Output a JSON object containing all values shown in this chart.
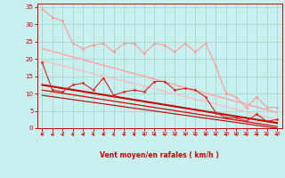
{
  "bg_color": "#c8f0ee",
  "grid_color": "#a8d8d0",
  "xlabel": "Vent moyen/en rafales ( km/h )",
  "xlabel_color": "#cc0000",
  "tick_color": "#cc0000",
  "xlim": [
    -0.5,
    23.5
  ],
  "ylim": [
    0,
    36
  ],
  "yticks": [
    0,
    5,
    10,
    15,
    20,
    25,
    30,
    35
  ],
  "xticks": [
    0,
    1,
    2,
    3,
    4,
    5,
    6,
    7,
    8,
    9,
    10,
    11,
    12,
    13,
    14,
    15,
    16,
    17,
    18,
    19,
    20,
    21,
    22,
    23
  ],
  "line_light1": {
    "y": [
      34.5,
      32.0,
      31.0,
      24.5,
      23.0,
      24.0,
      24.5,
      22.0,
      24.5,
      24.5,
      21.5,
      24.5,
      24.0,
      22.0,
      24.5,
      22.0,
      24.5,
      18.0,
      10.0,
      9.0,
      6.0,
      9.0,
      6.0,
      6.0
    ],
    "color": "#ff9999",
    "lw": 0.8,
    "ms": 1.8
  },
  "line_light_trend1": {
    "y_start": 23.0,
    "y_end": 4.5,
    "color": "#ffaaaa",
    "lw": 1.2
  },
  "line_light_trend2": {
    "y_start": 19.5,
    "y_end": 2.5,
    "color": "#ffbbbb",
    "lw": 0.9
  },
  "line_dark1": {
    "y": [
      19.0,
      11.0,
      10.5,
      12.5,
      13.0,
      11.0,
      14.5,
      9.5,
      10.5,
      11.0,
      10.5,
      13.5,
      13.5,
      11.0,
      11.5,
      11.0,
      9.0,
      4.5,
      3.0,
      3.0,
      2.0,
      4.0,
      2.0,
      2.5
    ],
    "color": "#dd2222",
    "lw": 0.8,
    "ms": 1.8
  },
  "line_dark_trend1": {
    "y_start": 12.5,
    "y_end": 1.5,
    "color": "#cc0000",
    "lw": 1.5
  },
  "line_dark_trend2": {
    "y_start": 11.0,
    "y_end": 0.5,
    "color": "#dd0000",
    "lw": 0.9
  },
  "line_dark_trend3": {
    "y_start": 9.5,
    "y_end": 0.0,
    "color": "#bb0000",
    "lw": 0.8
  },
  "arrow_color": "#cc0000"
}
